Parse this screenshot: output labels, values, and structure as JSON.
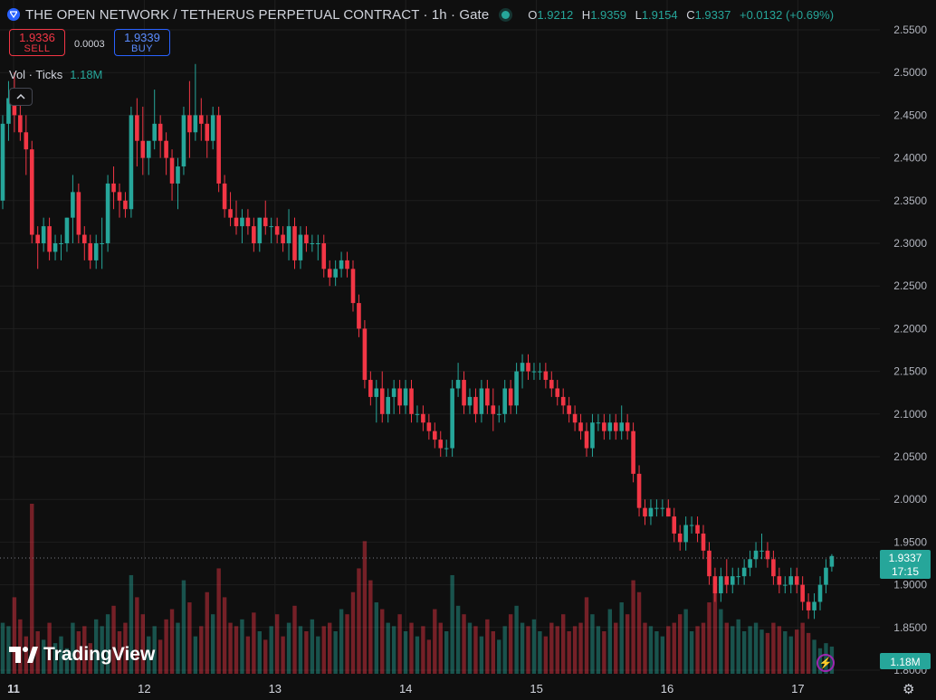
{
  "header": {
    "title": "THE OPEN NETWORK / TETHERUS PERPETUAL CONTRACT · 1h · Gate",
    "o_label": "O",
    "o_value": "1.9212",
    "h_label": "H",
    "h_value": "1.9359",
    "l_label": "L",
    "l_value": "1.9154",
    "c_label": "C",
    "c_value": "1.9337",
    "change": "+0.0132 (+0.69%)"
  },
  "trade": {
    "sell_price": "1.9336",
    "sell_label": "SELL",
    "spread": "0.0003",
    "buy_price": "1.9339",
    "buy_label": "BUY"
  },
  "volume_label": {
    "name": "Vol · Ticks",
    "value": "1.18M"
  },
  "brand": "TradingView",
  "price_tag": {
    "price": "1.9337",
    "countdown": "17:15"
  },
  "volume_tag": "1.18M",
  "colors": {
    "up": "#26a69a",
    "down": "#f23645",
    "background": "#0f0f0f",
    "grid": "#1f1f1f"
  },
  "icons": [
    "ton-logo-icon",
    "market-open-dot-icon",
    "collapse-chevron-icon",
    "lightning-icon",
    "settings-gear-icon"
  ],
  "chart_data": {
    "type": "candlestick",
    "ylim": [
      1.8,
      2.55
    ],
    "y_ticks": [
      "2.5500",
      "2.5000",
      "2.4500",
      "2.4000",
      "2.3500",
      "2.3000",
      "2.2500",
      "2.2000",
      "2.1500",
      "2.1000",
      "2.0500",
      "2.0000",
      "1.9500",
      "1.9000",
      "1.8500",
      "1.8000"
    ],
    "x_ticks": [
      "11",
      "12",
      "13",
      "14",
      "15",
      "16",
      "17"
    ],
    "candles_ohlc": [
      [
        2.35,
        2.45,
        2.34,
        2.44
      ],
      [
        2.44,
        2.49,
        2.42,
        2.47
      ],
      [
        2.47,
        2.5,
        2.43,
        2.45
      ],
      [
        2.45,
        2.48,
        2.42,
        2.43
      ],
      [
        2.43,
        2.45,
        2.38,
        2.41
      ],
      [
        2.41,
        2.42,
        2.3,
        2.31
      ],
      [
        2.31,
        2.32,
        2.27,
        2.3
      ],
      [
        2.3,
        2.33,
        2.29,
        2.32
      ],
      [
        2.32,
        2.33,
        2.28,
        2.29
      ],
      [
        2.29,
        2.31,
        2.28,
        2.3
      ],
      [
        2.3,
        2.31,
        2.28,
        2.3
      ],
      [
        2.3,
        2.33,
        2.29,
        2.33
      ],
      [
        2.33,
        2.38,
        2.3,
        2.36
      ],
      [
        2.36,
        2.37,
        2.3,
        2.31
      ],
      [
        2.31,
        2.32,
        2.28,
        2.3
      ],
      [
        2.3,
        2.31,
        2.27,
        2.28
      ],
      [
        2.28,
        2.31,
        2.27,
        2.3
      ],
      [
        2.3,
        2.33,
        2.27,
        2.3
      ],
      [
        2.3,
        2.38,
        2.29,
        2.37
      ],
      [
        2.37,
        2.39,
        2.34,
        2.36
      ],
      [
        2.36,
        2.37,
        2.33,
        2.35
      ],
      [
        2.35,
        2.36,
        2.33,
        2.34
      ],
      [
        2.34,
        2.46,
        2.33,
        2.45
      ],
      [
        2.45,
        2.47,
        2.39,
        2.42
      ],
      [
        2.42,
        2.46,
        2.38,
        2.4
      ],
      [
        2.4,
        2.41,
        2.38,
        2.42
      ],
      [
        2.42,
        2.48,
        2.41,
        2.44
      ],
      [
        2.44,
        2.45,
        2.4,
        2.42
      ],
      [
        2.42,
        2.43,
        2.38,
        2.4
      ],
      [
        2.4,
        2.41,
        2.35,
        2.37
      ],
      [
        2.37,
        2.4,
        2.34,
        2.39
      ],
      [
        2.39,
        2.46,
        2.38,
        2.45
      ],
      [
        2.45,
        2.49,
        2.4,
        2.43
      ],
      [
        2.43,
        2.51,
        2.42,
        2.45
      ],
      [
        2.45,
        2.47,
        2.42,
        2.44
      ],
      [
        2.44,
        2.45,
        2.4,
        2.42
      ],
      [
        2.42,
        2.46,
        2.41,
        2.45
      ],
      [
        2.45,
        2.46,
        2.36,
        2.37
      ],
      [
        2.37,
        2.38,
        2.33,
        2.34
      ],
      [
        2.34,
        2.36,
        2.32,
        2.33
      ],
      [
        2.33,
        2.35,
        2.31,
        2.32
      ],
      [
        2.32,
        2.34,
        2.3,
        2.33
      ],
      [
        2.33,
        2.34,
        2.31,
        2.32
      ],
      [
        2.32,
        2.33,
        2.29,
        2.3
      ],
      [
        2.3,
        2.33,
        2.29,
        2.33
      ],
      [
        2.33,
        2.35,
        2.31,
        2.32
      ],
      [
        2.32,
        2.33,
        2.3,
        2.32
      ],
      [
        2.32,
        2.33,
        2.3,
        2.31
      ],
      [
        2.31,
        2.32,
        2.29,
        2.3
      ],
      [
        2.3,
        2.34,
        2.28,
        2.32
      ],
      [
        2.32,
        2.33,
        2.27,
        2.28
      ],
      [
        2.28,
        2.32,
        2.27,
        2.31
      ],
      [
        2.31,
        2.32,
        2.29,
        2.3
      ],
      [
        2.3,
        2.31,
        2.29,
        2.3
      ],
      [
        2.3,
        2.31,
        2.28,
        2.3
      ],
      [
        2.3,
        2.31,
        2.26,
        2.27
      ],
      [
        2.27,
        2.28,
        2.25,
        2.26
      ],
      [
        2.26,
        2.28,
        2.25,
        2.27
      ],
      [
        2.27,
        2.29,
        2.26,
        2.28
      ],
      [
        2.28,
        2.29,
        2.26,
        2.27
      ],
      [
        2.27,
        2.28,
        2.22,
        2.23
      ],
      [
        2.23,
        2.24,
        2.19,
        2.2
      ],
      [
        2.2,
        2.21,
        2.13,
        2.14
      ],
      [
        2.14,
        2.15,
        2.11,
        2.12
      ],
      [
        2.12,
        2.14,
        2.09,
        2.13
      ],
      [
        2.13,
        2.15,
        2.09,
        2.1
      ],
      [
        2.1,
        2.13,
        2.09,
        2.12
      ],
      [
        2.12,
        2.14,
        2.1,
        2.13
      ],
      [
        2.13,
        2.14,
        2.1,
        2.11
      ],
      [
        2.11,
        2.14,
        2.1,
        2.13
      ],
      [
        2.13,
        2.14,
        2.09,
        2.1
      ],
      [
        2.1,
        2.11,
        2.09,
        2.1
      ],
      [
        2.1,
        2.11,
        2.08,
        2.09
      ],
      [
        2.09,
        2.1,
        2.07,
        2.08
      ],
      [
        2.08,
        2.09,
        2.06,
        2.07
      ],
      [
        2.07,
        2.08,
        2.05,
        2.06
      ],
      [
        2.06,
        2.07,
        2.05,
        2.06
      ],
      [
        2.06,
        2.14,
        2.05,
        2.13
      ],
      [
        2.13,
        2.16,
        2.12,
        2.14
      ],
      [
        2.14,
        2.15,
        2.1,
        2.11
      ],
      [
        2.11,
        2.13,
        2.1,
        2.12
      ],
      [
        2.12,
        2.13,
        2.09,
        2.1
      ],
      [
        2.1,
        2.14,
        2.09,
        2.13
      ],
      [
        2.13,
        2.14,
        2.1,
        2.11
      ],
      [
        2.11,
        2.13,
        2.08,
        2.1
      ],
      [
        2.1,
        2.11,
        2.09,
        2.1
      ],
      [
        2.1,
        2.14,
        2.09,
        2.13
      ],
      [
        2.13,
        2.14,
        2.1,
        2.11
      ],
      [
        2.11,
        2.16,
        2.1,
        2.15
      ],
      [
        2.15,
        2.17,
        2.13,
        2.16
      ],
      [
        2.16,
        2.17,
        2.14,
        2.15
      ],
      [
        2.15,
        2.16,
        2.14,
        2.15
      ],
      [
        2.15,
        2.16,
        2.14,
        2.15
      ],
      [
        2.15,
        2.16,
        2.13,
        2.14
      ],
      [
        2.14,
        2.15,
        2.12,
        2.13
      ],
      [
        2.13,
        2.14,
        2.11,
        2.12
      ],
      [
        2.12,
        2.13,
        2.1,
        2.11
      ],
      [
        2.11,
        2.12,
        2.09,
        2.1
      ],
      [
        2.1,
        2.11,
        2.08,
        2.09
      ],
      [
        2.09,
        2.1,
        2.07,
        2.08
      ],
      [
        2.08,
        2.09,
        2.05,
        2.06
      ],
      [
        2.06,
        2.1,
        2.05,
        2.09
      ],
      [
        2.09,
        2.1,
        2.08,
        2.09
      ],
      [
        2.09,
        2.1,
        2.07,
        2.08
      ],
      [
        2.08,
        2.1,
        2.07,
        2.09
      ],
      [
        2.09,
        2.1,
        2.07,
        2.08
      ],
      [
        2.08,
        2.11,
        2.07,
        2.09
      ],
      [
        2.09,
        2.1,
        2.07,
        2.08
      ],
      [
        2.08,
        2.09,
        2.02,
        2.03
      ],
      [
        2.03,
        2.04,
        1.98,
        1.99
      ],
      [
        1.99,
        2.0,
        1.97,
        1.98
      ],
      [
        1.98,
        2.0,
        1.97,
        1.99
      ],
      [
        1.99,
        2.0,
        1.98,
        1.99
      ],
      [
        1.99,
        2.0,
        1.98,
        1.99
      ],
      [
        1.99,
        2.0,
        1.98,
        1.98
      ],
      [
        1.98,
        1.99,
        1.95,
        1.96
      ],
      [
        1.96,
        1.97,
        1.94,
        1.95
      ],
      [
        1.95,
        1.98,
        1.94,
        1.97
      ],
      [
        1.97,
        1.98,
        1.96,
        1.97
      ],
      [
        1.97,
        1.98,
        1.95,
        1.96
      ],
      [
        1.96,
        1.97,
        1.93,
        1.94
      ],
      [
        1.94,
        1.95,
        1.9,
        1.91
      ],
      [
        1.91,
        1.92,
        1.88,
        1.89
      ],
      [
        1.89,
        1.92,
        1.88,
        1.91
      ],
      [
        1.91,
        1.93,
        1.89,
        1.9
      ],
      [
        1.9,
        1.92,
        1.89,
        1.91
      ],
      [
        1.91,
        1.92,
        1.9,
        1.91
      ],
      [
        1.91,
        1.93,
        1.9,
        1.92
      ],
      [
        1.92,
        1.94,
        1.91,
        1.93
      ],
      [
        1.93,
        1.95,
        1.92,
        1.94
      ],
      [
        1.94,
        1.96,
        1.93,
        1.94
      ],
      [
        1.94,
        1.95,
        1.92,
        1.93
      ],
      [
        1.93,
        1.94,
        1.9,
        1.91
      ],
      [
        1.91,
        1.92,
        1.89,
        1.9
      ],
      [
        1.9,
        1.91,
        1.89,
        1.9
      ],
      [
        1.9,
        1.92,
        1.89,
        1.91
      ],
      [
        1.91,
        1.92,
        1.89,
        1.9
      ],
      [
        1.9,
        1.91,
        1.87,
        1.88
      ],
      [
        1.88,
        1.89,
        1.86,
        1.87
      ],
      [
        1.87,
        1.89,
        1.86,
        1.88
      ],
      [
        1.88,
        1.91,
        1.87,
        1.9
      ],
      [
        1.9,
        1.93,
        1.89,
        1.92
      ],
      [
        1.9212,
        1.9359,
        1.9154,
        1.9337
      ]
    ],
    "volume_relative": [
      0.3,
      0.28,
      0.45,
      0.32,
      0.22,
      1.0,
      0.25,
      0.2,
      0.3,
      0.18,
      0.22,
      0.15,
      0.3,
      0.25,
      0.28,
      0.18,
      0.32,
      0.28,
      0.35,
      0.4,
      0.25,
      0.3,
      0.58,
      0.45,
      0.35,
      0.22,
      0.28,
      0.2,
      0.32,
      0.38,
      0.3,
      0.55,
      0.42,
      0.22,
      0.28,
      0.48,
      0.35,
      0.62,
      0.45,
      0.3,
      0.28,
      0.32,
      0.22,
      0.36,
      0.25,
      0.2,
      0.28,
      0.35,
      0.22,
      0.3,
      0.4,
      0.28,
      0.25,
      0.32,
      0.22,
      0.28,
      0.3,
      0.25,
      0.38,
      0.35,
      0.48,
      0.62,
      0.78,
      0.55,
      0.42,
      0.38,
      0.3,
      0.28,
      0.35,
      0.25,
      0.3,
      0.22,
      0.28,
      0.2,
      0.38,
      0.3,
      0.25,
      0.58,
      0.4,
      0.35,
      0.3,
      0.28,
      0.22,
      0.32,
      0.25,
      0.2,
      0.28,
      0.35,
      0.4,
      0.3,
      0.28,
      0.32,
      0.25,
      0.22,
      0.3,
      0.28,
      0.35,
      0.25,
      0.28,
      0.3,
      0.45,
      0.35,
      0.28,
      0.25,
      0.38,
      0.3,
      0.42,
      0.35,
      0.55,
      0.48,
      0.3,
      0.28,
      0.25,
      0.22,
      0.28,
      0.3,
      0.35,
      0.38,
      0.25,
      0.28,
      0.3,
      0.42,
      0.48,
      0.38,
      0.3,
      0.28,
      0.32,
      0.25,
      0.28,
      0.3,
      0.26,
      0.24,
      0.3,
      0.28,
      0.25,
      0.22,
      0.26,
      0.3,
      0.24,
      0.2,
      0.15,
      0.18,
      0.16
    ]
  }
}
